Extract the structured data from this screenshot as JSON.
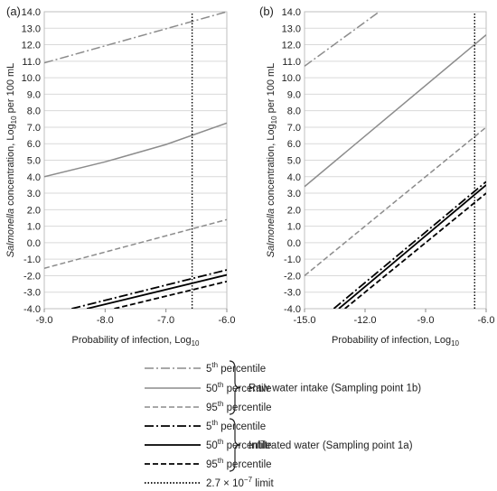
{
  "figure": {
    "panels": [
      "(a)",
      "(b)"
    ],
    "ylabel_parts": {
      "italic": "Salmonella",
      "pre": " concentration, Log",
      "sub": "10",
      "post": " per 100 mL"
    },
    "xlabel_parts": {
      "pre": "Probability of infection, Log",
      "sub": "10"
    },
    "legend": {
      "entries": [
        {
          "key": "raw-5",
          "num": "5",
          "sup": "th",
          "rest": " percentile",
          "color": "#8c8c8c",
          "dash": "dashdot"
        },
        {
          "key": "raw-50",
          "num": "50",
          "sup": "th",
          "rest": " percentile",
          "color": "#8c8c8c",
          "dash": "solid"
        },
        {
          "key": "raw-95",
          "num": "95",
          "sup": "th",
          "rest": " percentile",
          "color": "#8c8c8c",
          "dash": "dashed"
        },
        {
          "key": "inf-5",
          "num": "5",
          "sup": "th",
          "rest": " percentile",
          "color": "#000000",
          "dash": "dashdot"
        },
        {
          "key": "inf-50",
          "num": "50",
          "sup": "th",
          "rest": " percentile",
          "color": "#000000",
          "dash": "solid"
        },
        {
          "key": "inf-95",
          "num": "95",
          "sup": "th",
          "rest": " percentile",
          "color": "#000000",
          "dash": "dashed"
        },
        {
          "key": "limit",
          "num": "2.7 × 10",
          "sup": "−7",
          "rest": " limit",
          "color": "#000000",
          "dash": "dotted"
        }
      ],
      "groups": [
        {
          "label": "Raw water intake (Sampling point 1b)",
          "from": 0,
          "to": 2
        },
        {
          "label": "Infiltrated water (Sampling point 1a)",
          "from": 3,
          "to": 5
        }
      ]
    }
  },
  "chart_data": [
    {
      "type": "line",
      "panel": "(a)",
      "xlabel": "Probability of infection, Log10",
      "ylabel": "Salmonella concentration, Log10 per 100 mL",
      "xlim": [
        -9.0,
        -6.0
      ],
      "ylim": [
        -4.0,
        14.0
      ],
      "x_ticks": [
        -9.0,
        -8.0,
        -7.0,
        -6.0
      ],
      "x_tick_labels": [
        "-9.0",
        "-8.0",
        "-7.0",
        "-6.0"
      ],
      "y_ticks": [
        -4.0,
        -3.0,
        -2.0,
        -1.0,
        0.0,
        1.0,
        2.0,
        3.0,
        4.0,
        5.0,
        6.0,
        7.0,
        8.0,
        9.0,
        10.0,
        11.0,
        12.0,
        13.0,
        14.0
      ],
      "y_tick_labels": [
        "-4.0",
        "-3.0",
        "-2.0",
        "-1.0",
        "0.0",
        "1.0",
        "2.0",
        "3.0",
        "4.0",
        "5.0",
        "6.0",
        "7.0",
        "8.0",
        "9.0",
        "10.0",
        "11.0",
        "12.0",
        "13.0",
        "14.0"
      ],
      "grid": "horizontal",
      "series": [
        {
          "key": "raw-5",
          "x": [
            -9.0,
            -6.0
          ],
          "y": [
            10.9,
            14.0
          ]
        },
        {
          "key": "raw-50",
          "x": [
            -9.0,
            -8.0,
            -7.0,
            -6.0
          ],
          "y": [
            4.0,
            4.9,
            5.95,
            7.25
          ]
        },
        {
          "key": "raw-95",
          "x": [
            -9.0,
            -6.0
          ],
          "y": [
            -1.55,
            1.4
          ]
        },
        {
          "key": "inf-5",
          "x": [
            -8.55,
            -6.0
          ],
          "y": [
            -4.0,
            -1.65
          ]
        },
        {
          "key": "inf-50",
          "x": [
            -8.3,
            -6.0
          ],
          "y": [
            -4.0,
            -1.95
          ]
        },
        {
          "key": "inf-95",
          "x": [
            -7.85,
            -6.0
          ],
          "y": [
            -4.0,
            -2.35
          ]
        },
        {
          "key": "limit",
          "x": [
            -6.57,
            -6.57
          ],
          "y": [
            -4.0,
            14.0
          ]
        }
      ]
    },
    {
      "type": "line",
      "panel": "(b)",
      "xlabel": "Probability of infection, Log10",
      "ylabel": "Salmonella concentration, Log10 per 100 mL",
      "xlim": [
        -15.0,
        -6.0
      ],
      "ylim": [
        -4.0,
        14.0
      ],
      "x_ticks": [
        -15.0,
        -12.0,
        -9.0,
        -6.0
      ],
      "x_tick_labels": [
        "-15.0",
        "-12.0",
        "-9.0",
        "-6.0"
      ],
      "y_ticks": [
        -4.0,
        -3.0,
        -2.0,
        -1.0,
        0.0,
        1.0,
        2.0,
        3.0,
        4.0,
        5.0,
        6.0,
        7.0,
        8.0,
        9.0,
        10.0,
        11.0,
        12.0,
        13.0,
        14.0
      ],
      "y_tick_labels": [
        "-4.0",
        "-3.0",
        "-2.0",
        "-1.0",
        "0.0",
        "1.0",
        "2.0",
        "3.0",
        "4.0",
        "5.0",
        "6.0",
        "7.0",
        "8.0",
        "9.0",
        "10.0",
        "11.0",
        "12.0",
        "13.0",
        "14.0"
      ],
      "grid": "horizontal",
      "series": [
        {
          "key": "raw-5",
          "x": [
            -15.0,
            -11.3
          ],
          "y": [
            10.7,
            14.0
          ]
        },
        {
          "key": "raw-50",
          "x": [
            -15.0,
            -6.0
          ],
          "y": [
            3.4,
            12.6
          ]
        },
        {
          "key": "raw-95",
          "x": [
            -15.0,
            -6.0
          ],
          "y": [
            -2.0,
            7.0
          ]
        },
        {
          "key": "inf-5",
          "x": [
            -13.55,
            -6.0
          ],
          "y": [
            -4.0,
            3.7
          ]
        },
        {
          "key": "inf-50",
          "x": [
            -13.3,
            -6.0
          ],
          "y": [
            -4.0,
            3.5
          ]
        },
        {
          "key": "inf-95",
          "x": [
            -13.0,
            -6.0
          ],
          "y": [
            -4.0,
            3.0
          ]
        },
        {
          "key": "limit",
          "x": [
            -6.57,
            -6.57
          ],
          "y": [
            -4.0,
            14.0
          ]
        }
      ]
    }
  ]
}
